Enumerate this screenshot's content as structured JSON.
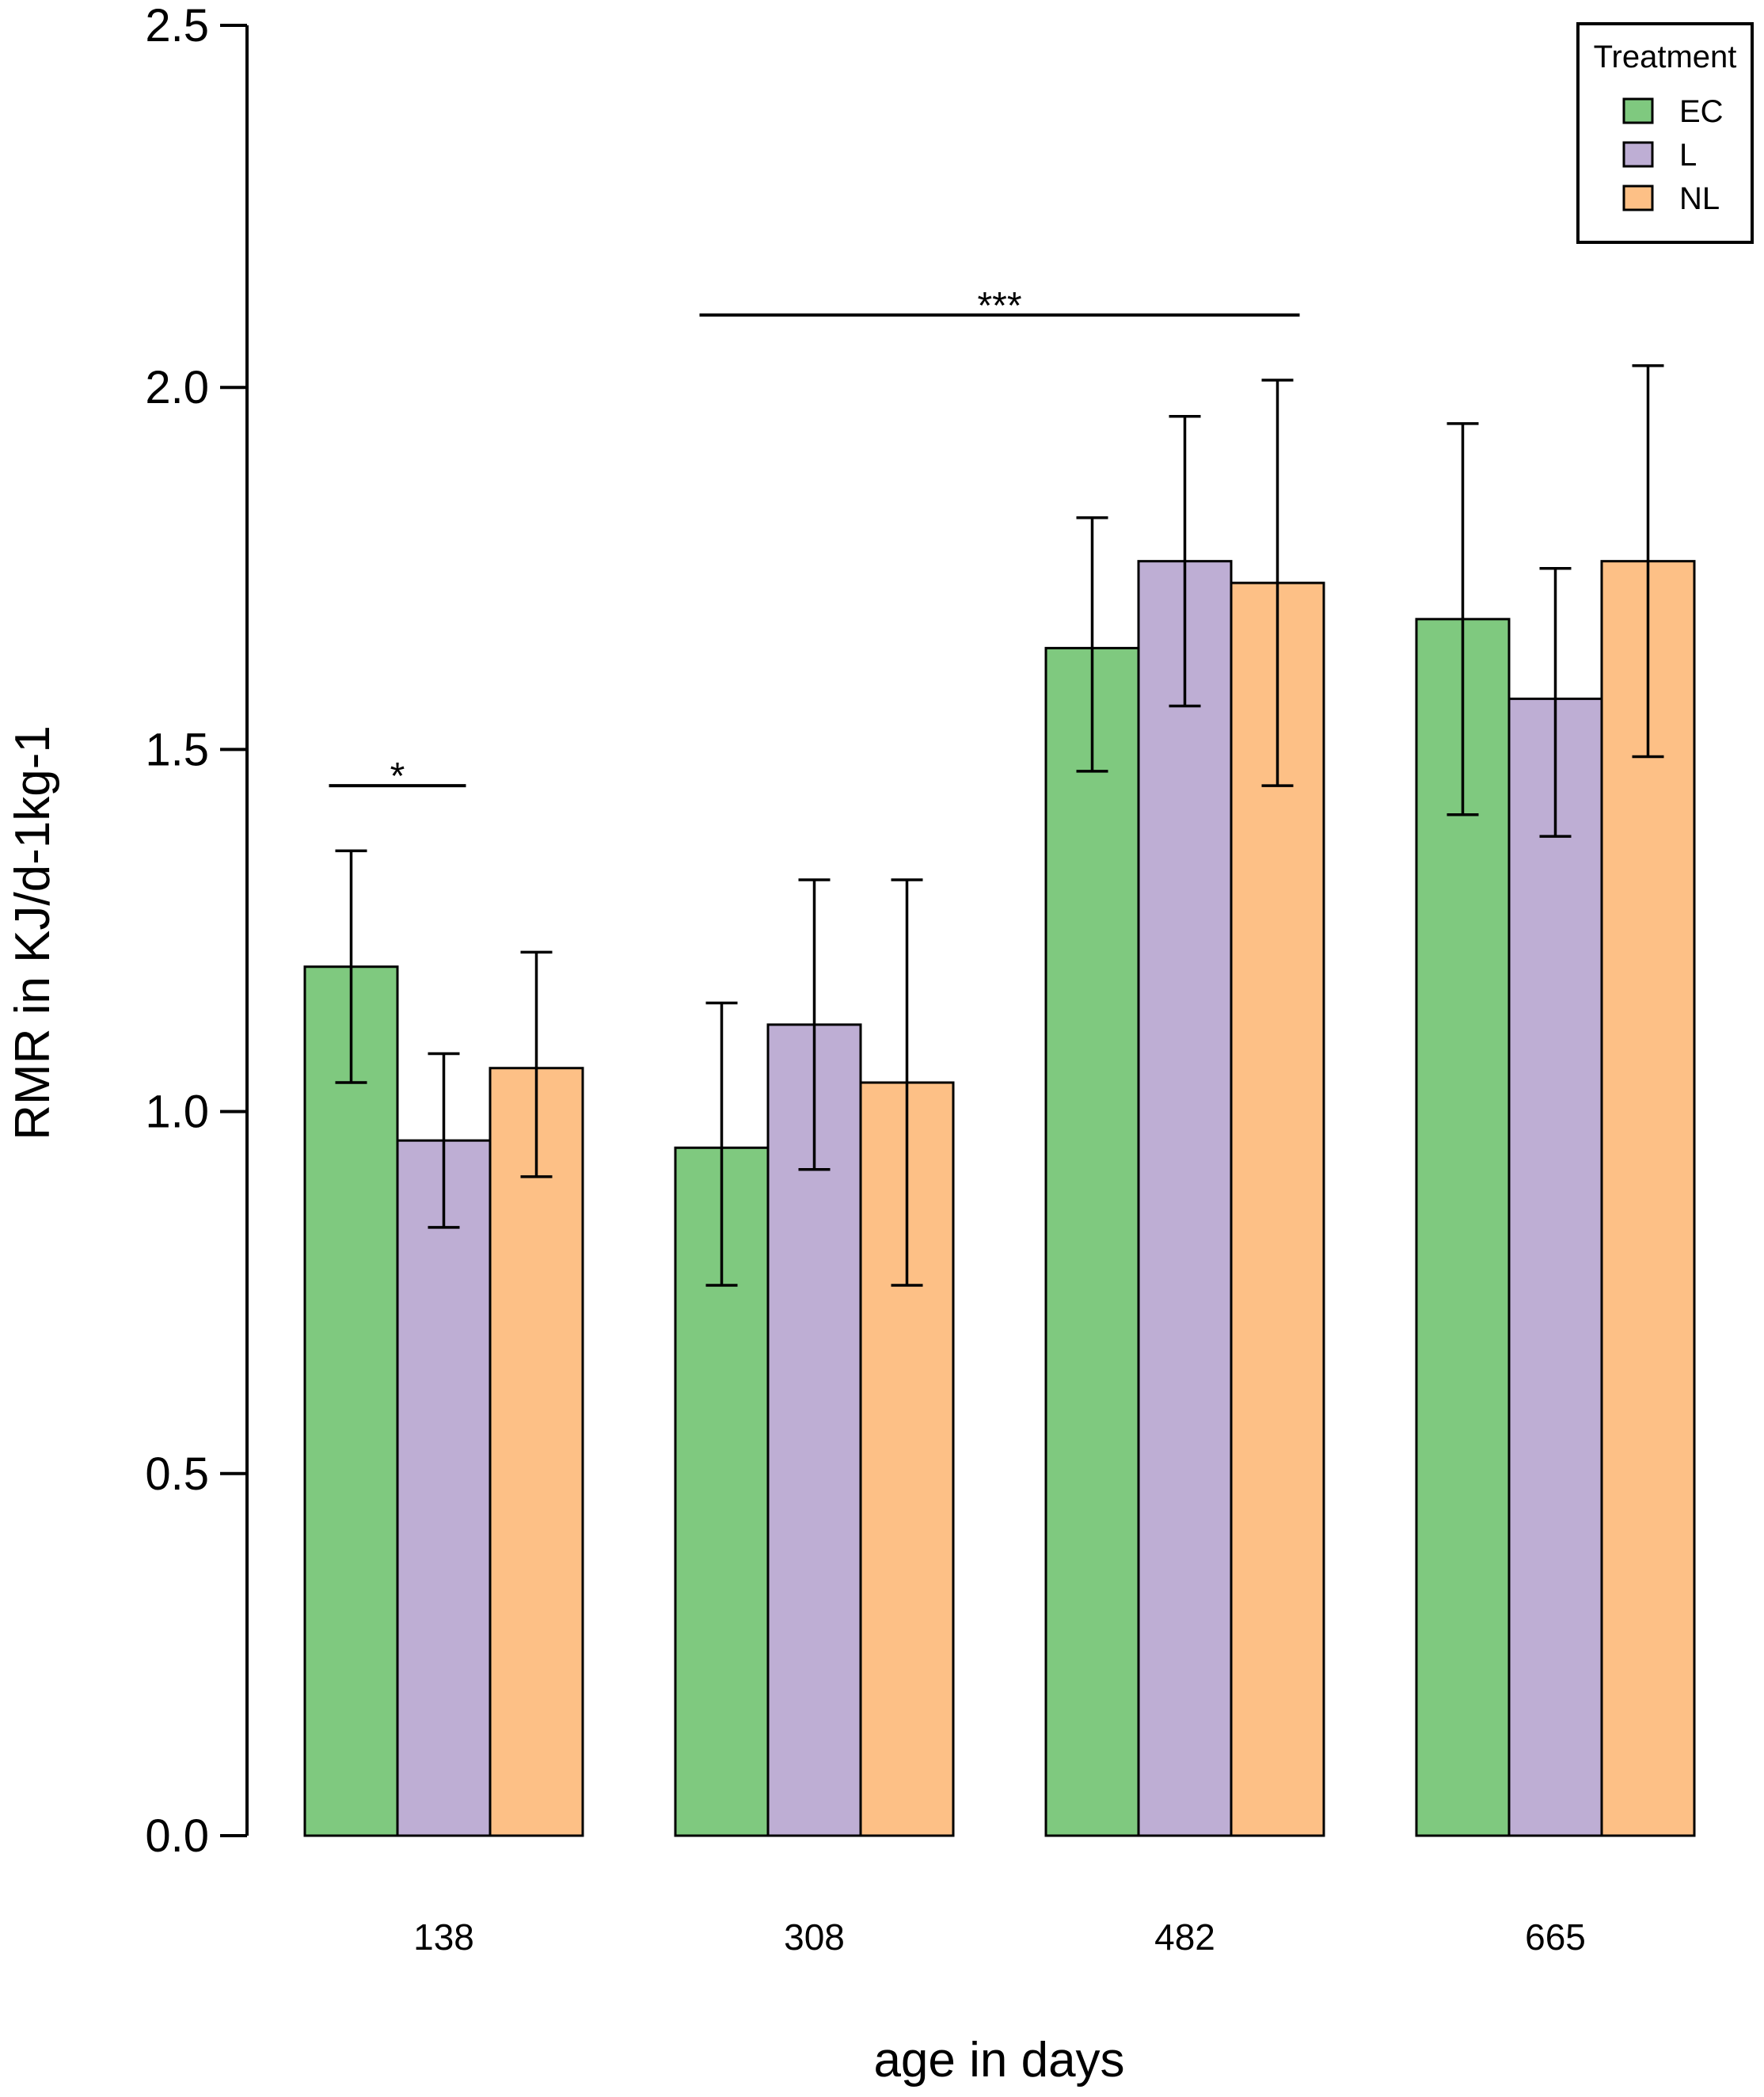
{
  "chart_data": {
    "type": "bar",
    "title": "",
    "xlabel": "age in days",
    "ylabel": "RMR in KJ/d-1kg-1",
    "ylim": [
      0,
      2.5
    ],
    "yticks": [
      "0.0",
      "0.5",
      "1.0",
      "1.5",
      "2.0",
      "2.5"
    ],
    "categories": [
      "138",
      "308",
      "482",
      "665"
    ],
    "series": [
      {
        "name": "EC",
        "color": "#7fc97f",
        "values": [
          1.2,
          0.95,
          1.64,
          1.68
        ],
        "err_low": [
          1.04,
          0.76,
          1.47,
          1.41
        ],
        "err_high": [
          1.36,
          1.15,
          1.82,
          1.95
        ]
      },
      {
        "name": "L",
        "color": "#beaed4",
        "values": [
          0.96,
          1.12,
          1.76,
          1.57
        ],
        "err_low": [
          0.84,
          0.92,
          1.56,
          1.38
        ],
        "err_high": [
          1.08,
          1.32,
          1.96,
          1.75
        ]
      },
      {
        "name": "NL",
        "color": "#fdc086",
        "values": [
          1.06,
          1.04,
          1.73,
          1.76
        ],
        "err_low": [
          0.91,
          0.76,
          1.45,
          1.49
        ],
        "err_high": [
          1.22,
          1.32,
          2.01,
          2.03
        ]
      }
    ],
    "legend": {
      "title": "Treatment",
      "position": "top-right"
    },
    "annotations": [
      {
        "label": "*",
        "y": 1.45,
        "from_category": 0,
        "from_series": 0,
        "to_category": 0,
        "to_series": 1
      },
      {
        "label": "***",
        "y": 2.1,
        "from_category": 1,
        "from_series": 0,
        "to_category": 2,
        "to_series": 2
      }
    ]
  }
}
